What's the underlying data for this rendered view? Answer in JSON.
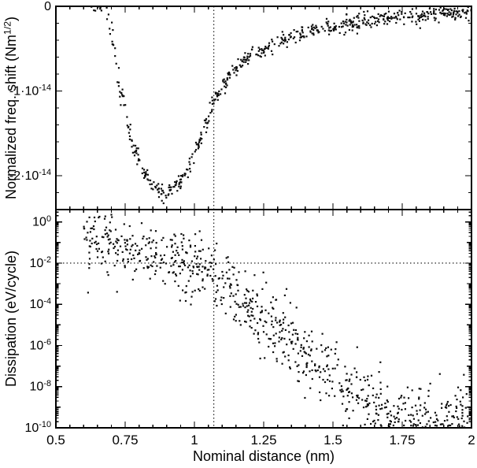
{
  "chart_data": {
    "type": "scatter",
    "title": "",
    "xlabel": "Nominal distance (nm)",
    "xlim": [
      0.5,
      2.0
    ],
    "xticks": [
      0.5,
      0.75,
      1.0,
      1.25,
      1.5,
      1.75,
      2.0
    ],
    "xtick_labels": [
      "0.5",
      "0.75",
      "1",
      "1.25",
      "1.5",
      "1.75",
      "2"
    ],
    "x_minor_step": 0.05,
    "point_color": "#0d0d0d",
    "annotations": {
      "vline_x": 1.07,
      "hline_bottom_panel_log": -2
    },
    "panels": [
      {
        "id": "freq_shift",
        "ylabel": "Normalized freq. shift (Nm^{1/2})",
        "scale": "linear",
        "y_unit": "1e-14",
        "ylim_1e14": [
          -2.4,
          0
        ],
        "yticks_1e14": [
          0,
          -1,
          -2
        ],
        "ytick_labels": [
          "0",
          "-1·10^{-14}",
          "-2·10^{-14}"
        ],
        "y_minor_step_1e14": 0.2,
        "n_points": 620,
        "x_range": [
          0.62,
          2.0
        ],
        "noise_sigma_1e14": 0.045,
        "trend_1e14": [
          [
            0.62,
            0.8
          ],
          [
            0.66,
            0.25
          ],
          [
            0.68,
            0.0
          ],
          [
            0.7,
            -0.35
          ],
          [
            0.72,
            -0.75
          ],
          [
            0.75,
            -1.25
          ],
          [
            0.78,
            -1.65
          ],
          [
            0.82,
            -1.98
          ],
          [
            0.86,
            -2.15
          ],
          [
            0.9,
            -2.22
          ],
          [
            0.94,
            -2.12
          ],
          [
            0.98,
            -1.9
          ],
          [
            1.02,
            -1.55
          ],
          [
            1.05,
            -1.3
          ],
          [
            1.07,
            -1.12
          ],
          [
            1.1,
            -0.95
          ],
          [
            1.15,
            -0.74
          ],
          [
            1.2,
            -0.6
          ],
          [
            1.25,
            -0.5
          ],
          [
            1.3,
            -0.42
          ],
          [
            1.4,
            -0.31
          ],
          [
            1.5,
            -0.24
          ],
          [
            1.6,
            -0.18
          ],
          [
            1.75,
            -0.12
          ],
          [
            1.9,
            -0.085
          ],
          [
            2.0,
            -0.07
          ]
        ]
      },
      {
        "id": "dissipation",
        "ylabel": "Dissipation (eV/cycle)",
        "scale": "log",
        "ylim_log": [
          -10,
          0.6
        ],
        "yticks_log": [
          0,
          -2,
          -4,
          -6,
          -8,
          -10
        ],
        "ytick_labels": [
          "10^{0}",
          "10^{-2}",
          "10^{-4}",
          "10^{-6}",
          "10^{-8}",
          "10^{-10}"
        ],
        "n_points": 850,
        "x_range": [
          0.6,
          2.0
        ],
        "noise_sigma_log": 0.8,
        "trend_log": [
          [
            0.6,
            -0.65
          ],
          [
            0.7,
            -1.15
          ],
          [
            0.8,
            -1.55
          ],
          [
            0.9,
            -1.9
          ],
          [
            1.0,
            -2.2
          ],
          [
            1.07,
            -2.65
          ],
          [
            1.1,
            -2.95
          ],
          [
            1.2,
            -4.2
          ],
          [
            1.3,
            -5.3
          ],
          [
            1.4,
            -6.4
          ],
          [
            1.5,
            -7.6
          ],
          [
            1.6,
            -8.6
          ],
          [
            1.7,
            -9.2
          ],
          [
            1.8,
            -9.5
          ],
          [
            2.0,
            -9.7
          ]
        ]
      }
    ]
  }
}
